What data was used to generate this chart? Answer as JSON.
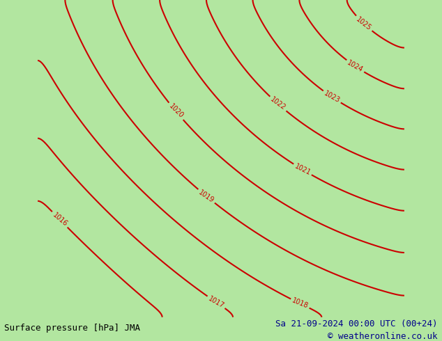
{
  "title_left": "Surface pressure [hPa] JMA",
  "title_right": "Sa 21-09-2024 00:00 UTC (00+24)",
  "copyright": "© weatheronline.co.uk",
  "bg_land_color": "#b2e6a0",
  "bg_sea_color": "#d0d0d0",
  "bg_outer_color": "#b2e6a0",
  "contour_color": "#cc0000",
  "border_color": "#1a1a1a",
  "label_color": "#cc0000",
  "text_color_bottom": "#00008b",
  "pressure_levels": [
    1016,
    1017,
    1018,
    1019,
    1020,
    1021,
    1022,
    1023,
    1024,
    1025
  ],
  "figsize": [
    6.34,
    4.9
  ],
  "dpi": 100
}
